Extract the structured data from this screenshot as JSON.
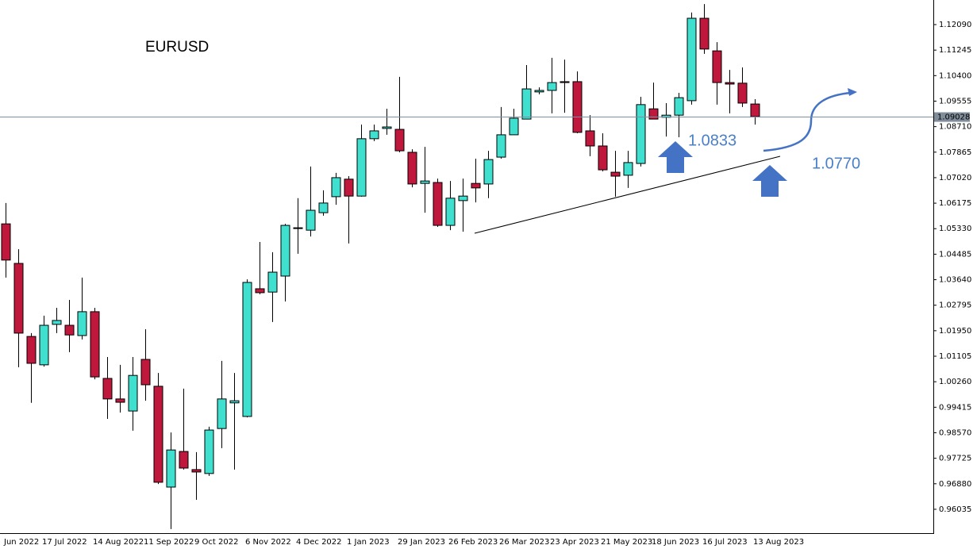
{
  "chart_data": {
    "type": "candlestick",
    "title": "EURUSD",
    "categories": [
      "Jun 2022",
      null,
      null,
      "17 Jul 2022",
      null,
      null,
      null,
      "14 Aug 2022",
      null,
      null,
      null,
      "11 Sep 2022",
      null,
      null,
      null,
      "9 Oct 2022",
      null,
      null,
      null,
      "6 Nov 2022",
      null,
      null,
      null,
      "4 Dec 2022",
      null,
      null,
      null,
      "1 Jan 2023",
      null,
      null,
      null,
      "29 Jan 2023",
      null,
      null,
      null,
      "26 Feb 2023",
      null,
      null,
      null,
      "26 Mar 2023",
      null,
      null,
      null,
      "23 Apr 2023",
      null,
      null,
      null,
      "21 May 2023",
      null,
      null,
      null,
      "18 Jun 2023",
      null,
      null,
      null,
      "16 Jul 2023",
      null,
      null,
      null,
      "13 Aug 2023"
    ],
    "open": [
      1.0549,
      1.0418,
      1.0176,
      1.0082,
      1.0216,
      1.0213,
      1.0179,
      1.0258,
      1.0037,
      0.9969,
      0.9929,
      1.01,
      1.0011,
      0.9677,
      0.9795,
      0.9735,
      0.9722,
      0.9871,
      0.9956,
      0.9911,
      1.0334,
      1.0323,
      1.0376,
      1.0534,
      1.0528,
      1.0586,
      1.0639,
      1.0697,
      1.0641,
      1.0831,
      1.0865,
      1.0862,
      1.0786,
      1.0683,
      1.0686,
      1.0544,
      1.0626,
      1.0683,
      1.0681,
      1.077,
      1.0844,
      1.0896,
      1.0986,
      1.0991,
      1.102,
      1.102,
      1.0857,
      1.0807,
      1.072,
      1.071,
      1.0749,
      1.093,
      1.0902,
      1.0909,
      1.0957,
      1.123,
      1.1122,
      1.1017,
      1.1015,
      1.0946
    ],
    "high": [
      1.0618,
      1.0465,
      1.0187,
      1.0245,
      1.0271,
      1.0297,
      1.0371,
      1.0271,
      1.0108,
      1.0082,
      1.0108,
      1.02,
      1.0055,
      0.9858,
      1.0003,
      0.9793,
      0.9877,
      1.0095,
      1.0055,
      1.0365,
      1.0489,
      1.0455,
      1.0549,
      1.0634,
      1.0739,
      1.066,
      1.0718,
      1.0707,
      1.0878,
      1.0878,
      1.093,
      1.1036,
      1.0796,
      1.0804,
      1.0699,
      1.0691,
      1.0699,
      1.0765,
      1.0791,
      1.0936,
      1.093,
      1.1075,
      1.1001,
      1.1099,
      1.1093,
      1.1054,
      1.0909,
      1.0849,
      1.0791,
      1.0791,
      1.097,
      1.1017,
      1.0949,
      1.0983,
      1.1249,
      1.1277,
      1.1151,
      1.1059,
      1.1067,
      1.0962
    ],
    "low": [
      1.0371,
      1.0074,
      0.9956,
      1.0076,
      1.0187,
      1.0124,
      1.0166,
      1.0034,
      0.9903,
      0.9924,
      0.9864,
      0.9963,
      0.9687,
      0.9538,
      0.9735,
      0.9635,
      0.9714,
      0.9806,
      0.9735,
      0.9908,
      1.0316,
      1.0224,
      1.0292,
      1.045,
      1.0507,
      1.0576,
      1.0612,
      1.0484,
      1.0639,
      1.0823,
      1.0844,
      1.0786,
      1.067,
      1.0586,
      1.0539,
      1.0528,
      1.0523,
      1.062,
      1.0634,
      1.0765,
      1.0844,
      1.0896,
      1.0978,
      1.0915,
      1.0917,
      1.0849,
      1.0773,
      1.0723,
      1.0639,
      1.0668,
      1.0739,
      1.0896,
      1.0838,
      1.0836,
      1.0944,
      1.1112,
      1.0944,
      1.0915,
      1.0936,
      1.0878
    ],
    "close": [
      1.0429,
      1.0187,
      1.0087,
      1.0213,
      1.0229,
      1.0181,
      1.0258,
      1.0042,
      0.9969,
      0.9958,
      1.0047,
      1.0016,
      0.9693,
      0.98,
      0.974,
      0.9727,
      0.9866,
      0.9969,
      0.9963,
      1.0355,
      1.0321,
      1.0389,
      1.0544,
      1.0536,
      1.0594,
      1.0618,
      1.0702,
      1.0641,
      1.0831,
      1.0857,
      1.087,
      1.0791,
      1.0681,
      1.0691,
      1.0544,
      1.0634,
      1.0641,
      1.0668,
      1.0762,
      1.0844,
      1.0899,
      1.0996,
      1.0991,
      1.1017,
      1.1017,
      1.0852,
      1.0807,
      1.0728,
      1.0707,
      1.0752,
      1.0944,
      1.0896,
      1.0909,
      1.0967,
      1.123,
      1.1128,
      1.1017,
      1.1012,
      1.0949,
      1.0904
    ],
    "up_color": "#40e0d0",
    "down_color": "#c0173d",
    "ylim": [
      0.95245,
      1.12905
    ],
    "yticks": [
      {
        "value": 1.1209,
        "label": "1.12090"
      },
      1.11245,
      {
        "value": 1.104,
        "label": "1.10400"
      },
      {
        "value": 1.09555,
        "label": "1.09555"
      },
      {
        "value": 1.0871,
        "label": "1.08710"
      },
      1.07865,
      {
        "value": 1.0702,
        "label": "1.07020"
      },
      1.06175,
      {
        "value": 1.0533,
        "label": "1.05330"
      },
      1.04485,
      {
        "value": 1.0364,
        "label": "1.03640"
      },
      1.02795,
      {
        "value": 1.0195,
        "label": "1.01950"
      },
      1.01105,
      {
        "value": 1.0026,
        "label": "1.00260"
      },
      0.99415,
      {
        "value": 0.9857,
        "label": "0.98570"
      },
      0.97725,
      {
        "value": 0.9688,
        "label": "0.96880"
      },
      0.96035
    ],
    "last_price": 1.09028,
    "annotations": [
      "1.0833",
      "1.0770"
    ]
  }
}
